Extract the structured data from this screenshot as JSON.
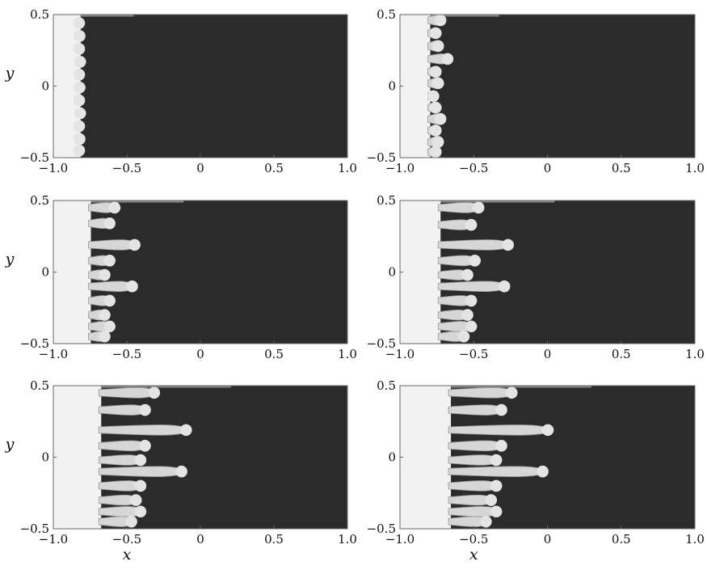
{
  "figure": {
    "axes": {
      "xlabel": "x",
      "ylabel": "y",
      "xlim": [
        -1.0,
        1.0
      ],
      "ylim": [
        -0.5,
        0.5
      ],
      "xticks": [
        "−1.0",
        "−0.5",
        "0",
        "0.5",
        "1.0"
      ],
      "yticks": [
        "0.5",
        "0",
        "−0.5"
      ]
    },
    "colors": {
      "fluid_dark": "#2b2b2b",
      "fluid_light": "#f2f2f2",
      "finger": "#d6d6d6",
      "frame": "#666666"
    },
    "panels": [
      {
        "front_x": -0.82,
        "finger_length": 0.04,
        "fingers": [
          {
            "y": 0.44,
            "len": 0.7
          },
          {
            "y": 0.35,
            "len": 0.9
          },
          {
            "y": 0.26,
            "len": 0.6
          },
          {
            "y": 0.17,
            "len": 1.0
          },
          {
            "y": 0.08,
            "len": 0.7
          },
          {
            "y": -0.01,
            "len": 0.9
          },
          {
            "y": -0.1,
            "len": 0.8
          },
          {
            "y": -0.19,
            "len": 1.0
          },
          {
            "y": -0.28,
            "len": 0.7
          },
          {
            "y": -0.37,
            "len": 0.9
          },
          {
            "y": -0.45,
            "len": 0.6
          }
        ]
      },
      {
        "front_x": -0.8,
        "finger_length": 0.16,
        "fingers": [
          {
            "y": 0.46,
            "len": 0.7
          },
          {
            "y": 0.37,
            "len": 0.5
          },
          {
            "y": 0.28,
            "len": 0.6
          },
          {
            "y": 0.19,
            "len": 1.0
          },
          {
            "y": 0.1,
            "len": 0.5
          },
          {
            "y": 0.02,
            "len": 0.6
          },
          {
            "y": -0.07,
            "len": 0.4
          },
          {
            "y": -0.15,
            "len": 0.5
          },
          {
            "y": -0.23,
            "len": 0.7
          },
          {
            "y": -0.31,
            "len": 0.5
          },
          {
            "y": -0.39,
            "len": 0.6
          },
          {
            "y": -0.46,
            "len": 0.5
          }
        ]
      },
      {
        "front_x": -0.75,
        "finger_length": 0.34,
        "fingers": [
          {
            "y": 0.45,
            "len": 0.6
          },
          {
            "y": 0.34,
            "len": 0.5
          },
          {
            "y": 0.19,
            "len": 1.0
          },
          {
            "y": 0.08,
            "len": 0.5
          },
          {
            "y": -0.02,
            "len": 0.4
          },
          {
            "y": -0.1,
            "len": 0.95
          },
          {
            "y": -0.2,
            "len": 0.5
          },
          {
            "y": -0.3,
            "len": 0.4
          },
          {
            "y": -0.38,
            "len": 0.5
          },
          {
            "y": -0.45,
            "len": 0.4
          }
        ]
      },
      {
        "front_x": -0.73,
        "finger_length": 0.5,
        "fingers": [
          {
            "y": 0.45,
            "len": 0.6
          },
          {
            "y": 0.33,
            "len": 0.5
          },
          {
            "y": 0.19,
            "len": 1.0
          },
          {
            "y": 0.08,
            "len": 0.55
          },
          {
            "y": -0.02,
            "len": 0.45
          },
          {
            "y": -0.1,
            "len": 0.95
          },
          {
            "y": -0.2,
            "len": 0.5
          },
          {
            "y": -0.3,
            "len": 0.45
          },
          {
            "y": -0.38,
            "len": 0.5
          },
          {
            "y": -0.45,
            "len": 0.4
          }
        ]
      },
      {
        "front_x": -0.68,
        "finger_length": 0.62,
        "fingers": [
          {
            "y": 0.45,
            "len": 0.65
          },
          {
            "y": 0.33,
            "len": 0.55
          },
          {
            "y": 0.19,
            "len": 1.0
          },
          {
            "y": 0.08,
            "len": 0.55
          },
          {
            "y": -0.02,
            "len": 0.5
          },
          {
            "y": -0.1,
            "len": 0.95
          },
          {
            "y": -0.2,
            "len": 0.5
          },
          {
            "y": -0.3,
            "len": 0.45
          },
          {
            "y": -0.38,
            "len": 0.5
          },
          {
            "y": -0.45,
            "len": 0.4
          }
        ]
      },
      {
        "front_x": -0.66,
        "finger_length": 0.7,
        "fingers": [
          {
            "y": 0.45,
            "len": 0.65
          },
          {
            "y": 0.33,
            "len": 0.55
          },
          {
            "y": 0.19,
            "len": 1.0
          },
          {
            "y": 0.08,
            "len": 0.55
          },
          {
            "y": -0.02,
            "len": 0.5
          },
          {
            "y": -0.1,
            "len": 0.95
          },
          {
            "y": -0.2,
            "len": 0.5
          },
          {
            "y": -0.3,
            "len": 0.45
          },
          {
            "y": -0.38,
            "len": 0.5
          },
          {
            "y": -0.45,
            "len": 0.4
          }
        ]
      }
    ]
  }
}
